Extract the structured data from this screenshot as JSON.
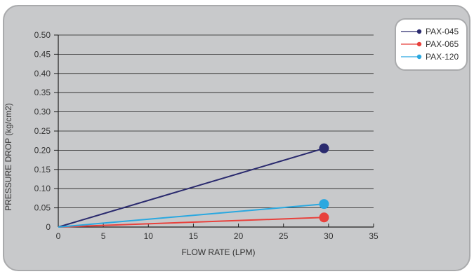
{
  "chart_data": {
    "type": "line",
    "xlabel": "FLOW RATE (LPM)",
    "ylabel": "PRESSURE DROP (kg/cm2)",
    "xlim": [
      0,
      35
    ],
    "ylim": [
      0,
      0.5
    ],
    "x_ticks": [
      "0",
      "5",
      "10",
      "15",
      "20",
      "25",
      "30",
      "35"
    ],
    "y_ticks": [
      "0",
      "0.05",
      "0.10",
      "0.15",
      "0.20",
      "0.25",
      "0.30",
      "0.35",
      "0.40",
      "0.45",
      "0.50"
    ],
    "grid": "horizontal",
    "legend_position": "top-right",
    "series": [
      {
        "name": "PAX-045",
        "color": "#2a2a6e",
        "x": [
          0,
          29.5
        ],
        "y": [
          0,
          0.205
        ]
      },
      {
        "name": "PAX-065",
        "color": "#e8413c",
        "x": [
          0,
          29.5
        ],
        "y": [
          0,
          0.025
        ]
      },
      {
        "name": "PAX-120",
        "color": "#2aa8e0",
        "x": [
          0,
          29.5
        ],
        "y": [
          0,
          0.06
        ]
      }
    ]
  }
}
